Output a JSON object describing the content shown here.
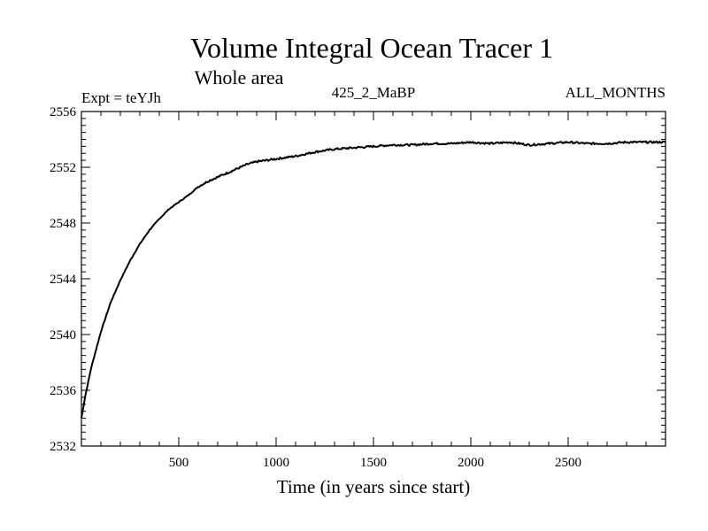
{
  "chart_data": {
    "type": "line",
    "title": "Volume Integral Ocean Tracer 1",
    "subtitle": "Whole area",
    "expt_label": "Expt = teYJh",
    "run_label": "425_2_MaBP",
    "period_label": "ALL_MONTHS",
    "xlabel": "Time (in years since start)",
    "ylabel": "",
    "xlim": [
      0,
      3000
    ],
    "ylim": [
      2532,
      2556
    ],
    "x_ticks": [
      500,
      1000,
      1500,
      2000,
      2500
    ],
    "y_ticks": [
      2532,
      2536,
      2540,
      2544,
      2548,
      2552,
      2556
    ],
    "grid": false,
    "series": [
      {
        "name": "Volume Integral Ocean Tracer 1",
        "x": [
          0,
          20,
          50,
          100,
          150,
          200,
          250,
          300,
          350,
          400,
          450,
          500,
          550,
          600,
          650,
          700,
          750,
          800,
          850,
          900,
          1000,
          1100,
          1200,
          1300,
          1400,
          1500,
          1600,
          1700,
          1800,
          1900,
          2000,
          2100,
          2200,
          2300,
          2400,
          2500,
          2600,
          2700,
          2800,
          2900,
          3000
        ],
        "values": [
          2534.0,
          2535.6,
          2537.6,
          2540.2,
          2542.3,
          2543.9,
          2545.3,
          2546.5,
          2547.5,
          2548.3,
          2549.0,
          2549.5,
          2550.0,
          2550.6,
          2551.0,
          2551.3,
          2551.6,
          2551.9,
          2552.2,
          2552.4,
          2552.6,
          2552.8,
          2553.1,
          2553.3,
          2553.4,
          2553.5,
          2553.6,
          2553.6,
          2553.7,
          2553.7,
          2553.8,
          2553.7,
          2553.8,
          2553.6,
          2553.7,
          2553.8,
          2553.7,
          2553.7,
          2553.8,
          2553.8,
          2553.8
        ]
      }
    ]
  }
}
